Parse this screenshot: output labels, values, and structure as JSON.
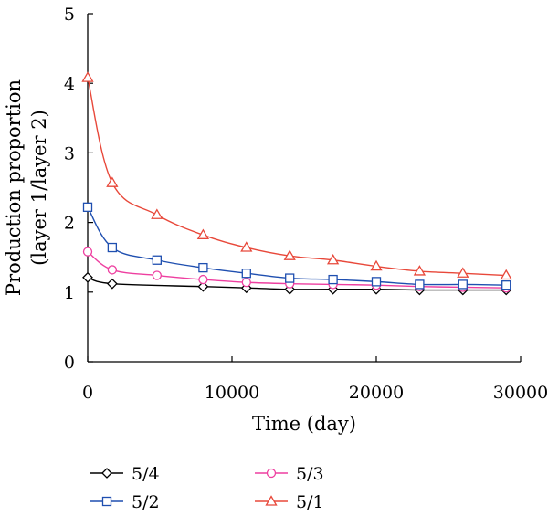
{
  "chart_data": {
    "type": "line",
    "xlabel": "Time (day)",
    "ylabel_line1": "Production proportion",
    "ylabel_line2": "(layer 1/layer 2)",
    "xlim": [
      0,
      30000
    ],
    "ylim": [
      0,
      5
    ],
    "xticks": [
      0,
      10000,
      20000,
      30000
    ],
    "yticks": [
      0,
      1,
      2,
      3,
      4,
      5
    ],
    "xtick_labels": [
      "0",
      "10000",
      "20000",
      "30000"
    ],
    "ytick_labels": [
      "0",
      "1",
      "2",
      "3",
      "4",
      "5"
    ],
    "grid": false,
    "legend_position": "bottom",
    "series": [
      {
        "name": "5/4",
        "marker": "diamond",
        "color": "#000000",
        "x": [
          0,
          1700,
          8000,
          11000,
          14000,
          17000,
          20000,
          23000,
          26000,
          29000
        ],
        "y": [
          1.21,
          1.12,
          1.08,
          1.06,
          1.04,
          1.04,
          1.04,
          1.03,
          1.03,
          1.03
        ]
      },
      {
        "name": "5/3",
        "marker": "circle",
        "color": "#ee3fa0",
        "x": [
          0,
          1700,
          4800,
          8000,
          11000,
          14000,
          17000,
          20000,
          23000,
          26000,
          29000
        ],
        "y": [
          1.58,
          1.32,
          1.24,
          1.18,
          1.14,
          1.12,
          1.11,
          1.1,
          1.08,
          1.07,
          1.06
        ]
      },
      {
        "name": "5/2",
        "marker": "square",
        "color": "#1f4fb0",
        "x": [
          0,
          1700,
          4800,
          8000,
          11000,
          14000,
          17000,
          20000,
          23000,
          26000,
          29000
        ],
        "y": [
          2.22,
          1.64,
          1.46,
          1.35,
          1.27,
          1.2,
          1.18,
          1.15,
          1.11,
          1.11,
          1.1
        ]
      },
      {
        "name": "5/1",
        "marker": "triangle",
        "color": "#e8483a",
        "x": [
          0,
          1700,
          4800,
          8000,
          11000,
          14000,
          17000,
          20000,
          23000,
          26000,
          29000
        ],
        "y": [
          4.08,
          2.57,
          2.11,
          1.82,
          1.64,
          1.52,
          1.46,
          1.37,
          1.3,
          1.27,
          1.24
        ]
      }
    ],
    "legend_order": [
      "5/4",
      "5/3",
      "5/2",
      "5/1"
    ]
  }
}
